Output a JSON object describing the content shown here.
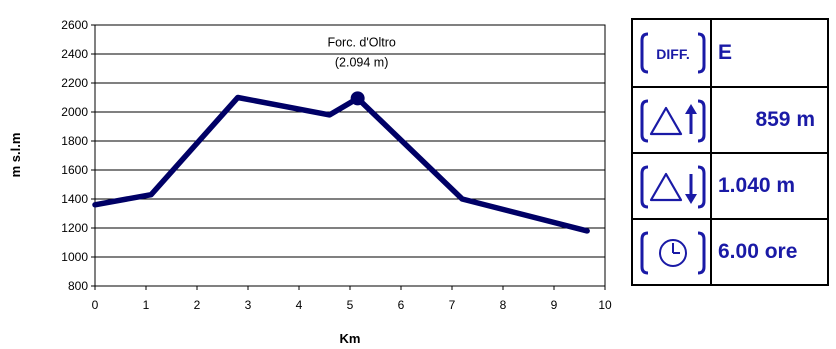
{
  "chart_data": {
    "type": "line",
    "xlabel": "Km",
    "ylabel": "m s.l.m",
    "xlim": [
      0,
      10
    ],
    "ylim": [
      800,
      2600
    ],
    "x_ticks": [
      "0",
      "1",
      "2",
      "3",
      "4",
      "5",
      "6",
      "7",
      "8",
      "9",
      "10"
    ],
    "y_ticks": [
      "800",
      "1000",
      "1200",
      "1400",
      "1600",
      "1800",
      "2000",
      "2200",
      "2400",
      "2600"
    ],
    "grid": "horizontal",
    "series": [
      {
        "color": "#000066",
        "points": [
          {
            "x": 0,
            "y": 1360
          },
          {
            "x": 1.1,
            "y": 1430
          },
          {
            "x": 2.8,
            "y": 2100
          },
          {
            "x": 4.6,
            "y": 1980
          },
          {
            "x": 5.15,
            "y": 2094
          },
          {
            "x": 7.2,
            "y": 1400
          },
          {
            "x": 9.65,
            "y": 1180
          }
        ]
      }
    ],
    "highlight": {
      "x": 5.15,
      "y": 2094
    },
    "annotation": {
      "line1": "Forc. d'Oltro",
      "line2": "(2.094 m)"
    }
  },
  "stats": {
    "difficulty": {
      "icon_label": "DIFF.",
      "value": "E"
    },
    "ascent": {
      "icon": "triangle-up-arrow-icon",
      "value": "859 m"
    },
    "descent": {
      "icon": "triangle-down-arrow-icon",
      "value": "1.040 m"
    },
    "time": {
      "icon": "clock-icon",
      "value": "6.00 ore"
    },
    "value_color": "#1a1aa6"
  }
}
